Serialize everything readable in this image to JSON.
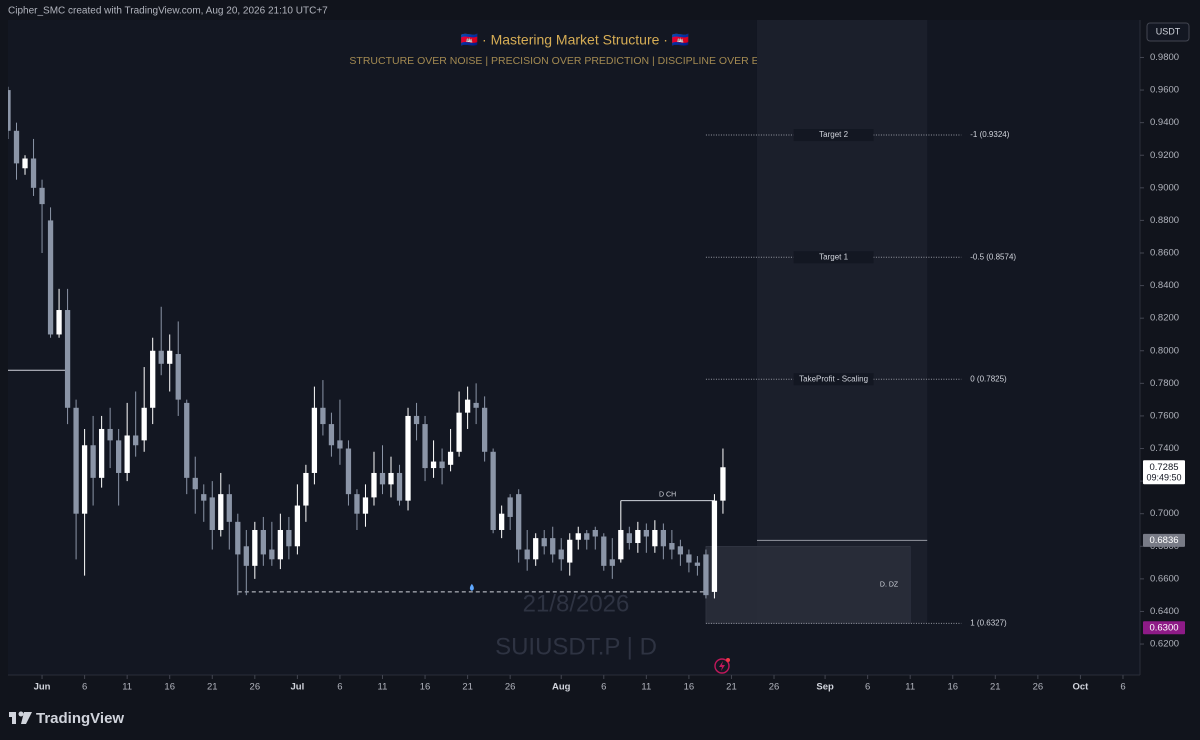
{
  "chart_data": {
    "type": "candlestick",
    "credit": "Cipher_SMC created with TradingView.com, Aug 20, 2026 21:10 UTC+7",
    "title": "🇰🇭 · Mastering Market Structure · 🇰🇭",
    "subtitle": "STRUCTURE OVER NOISE  |  PRECISION OVER PREDICTION  |  DISCIPLINE OVER EMOTION",
    "watermark_date": "21/8/2026",
    "symbol": "SUIUSDT.P | D",
    "currency": "USDT",
    "brand": "TradingView",
    "up_color": "#ffffff",
    "down_color": "#8b95a7",
    "x": [
      "2026-05-28",
      "2026-05-29",
      "2026-05-30",
      "2026-05-31",
      "2026-06-01",
      "2026-06-02",
      "2026-06-03",
      "2026-06-04",
      "2026-06-05",
      "2026-06-06",
      "2026-06-07",
      "2026-06-08",
      "2026-06-09",
      "2026-06-10",
      "2026-06-11",
      "2026-06-12",
      "2026-06-13",
      "2026-06-14",
      "2026-06-15",
      "2026-06-16",
      "2026-06-17",
      "2026-06-18",
      "2026-06-19",
      "2026-06-20",
      "2026-06-21",
      "2026-06-22",
      "2026-06-23",
      "2026-06-24",
      "2026-06-25",
      "2026-06-26",
      "2026-06-27",
      "2026-06-28",
      "2026-06-29",
      "2026-06-30",
      "2026-07-01",
      "2026-07-02",
      "2026-07-03",
      "2026-07-04",
      "2026-07-05",
      "2026-07-06",
      "2026-07-07",
      "2026-07-08",
      "2026-07-09",
      "2026-07-10",
      "2026-07-11",
      "2026-07-12",
      "2026-07-13",
      "2026-07-14",
      "2026-07-15",
      "2026-07-16",
      "2026-07-17",
      "2026-07-18",
      "2026-07-19",
      "2026-07-20",
      "2026-07-21",
      "2026-07-22",
      "2026-07-23",
      "2026-07-24",
      "2026-07-25",
      "2026-07-26",
      "2026-07-27",
      "2026-07-28",
      "2026-07-29",
      "2026-07-30",
      "2026-07-31",
      "2026-08-01",
      "2026-08-02",
      "2026-08-03",
      "2026-08-04",
      "2026-08-05",
      "2026-08-06",
      "2026-08-07",
      "2026-08-08",
      "2026-08-09",
      "2026-08-10",
      "2026-08-11",
      "2026-08-12",
      "2026-08-13",
      "2026-08-14",
      "2026-08-15",
      "2026-08-16",
      "2026-08-17",
      "2026-08-18",
      "2026-08-19",
      "2026-08-20"
    ],
    "open": [
      0.96,
      0.935,
      0.912,
      0.918,
      0.9,
      0.88,
      0.81,
      0.825,
      0.765,
      0.7,
      0.742,
      0.722,
      0.752,
      0.745,
      0.725,
      0.748,
      0.745,
      0.765,
      0.8,
      0.792,
      0.798,
      0.768,
      0.722,
      0.712,
      0.71,
      0.69,
      0.712,
      0.695,
      0.68,
      0.668,
      0.69,
      0.678,
      0.672,
      0.69,
      0.68,
      0.705,
      0.725,
      0.765,
      0.755,
      0.745,
      0.74,
      0.712,
      0.7,
      0.71,
      0.725,
      0.718,
      0.725,
      0.708,
      0.76,
      0.755,
      0.728,
      0.732,
      0.73,
      0.738,
      0.762,
      0.768,
      0.765,
      0.738,
      0.69,
      0.71,
      0.712,
      0.678,
      0.672,
      0.685,
      0.685,
      0.678,
      0.67,
      0.684,
      0.688,
      0.69,
      0.686,
      0.672,
      0.672,
      0.688,
      0.682,
      0.69,
      0.68,
      0.69,
      0.682,
      0.68,
      0.675,
      0.67,
      0.675,
      0.652,
      0.708
    ],
    "high": [
      0.962,
      0.94,
      0.92,
      0.93,
      0.905,
      0.888,
      0.838,
      0.838,
      0.77,
      0.752,
      0.76,
      0.76,
      0.765,
      0.752,
      0.768,
      0.775,
      0.79,
      0.808,
      0.827,
      0.81,
      0.818,
      0.77,
      0.735,
      0.718,
      0.72,
      0.725,
      0.718,
      0.7,
      0.69,
      0.695,
      0.698,
      0.695,
      0.7,
      0.698,
      0.718,
      0.73,
      0.778,
      0.782,
      0.762,
      0.77,
      0.745,
      0.715,
      0.718,
      0.738,
      0.742,
      0.735,
      0.73,
      0.765,
      0.768,
      0.76,
      0.745,
      0.74,
      0.752,
      0.775,
      0.778,
      0.78,
      0.772,
      0.74,
      0.705,
      0.712,
      0.715,
      0.69,
      0.688,
      0.69,
      0.692,
      0.685,
      0.688,
      0.692,
      0.69,
      0.692,
      0.688,
      0.685,
      0.708,
      0.692,
      0.695,
      0.694,
      0.696,
      0.694,
      0.69,
      0.684,
      0.678,
      0.674,
      0.678,
      0.712,
      0.74
    ],
    "low": [
      0.93,
      0.905,
      0.908,
      0.895,
      0.86,
      0.808,
      0.808,
      0.755,
      0.672,
      0.662,
      0.705,
      0.716,
      0.728,
      0.705,
      0.72,
      0.735,
      0.738,
      0.755,
      0.785,
      0.775,
      0.76,
      0.712,
      0.7,
      0.695,
      0.678,
      0.686,
      0.678,
      0.65,
      0.65,
      0.66,
      0.668,
      0.668,
      0.666,
      0.672,
      0.675,
      0.695,
      0.718,
      0.748,
      0.735,
      0.73,
      0.705,
      0.69,
      0.692,
      0.705,
      0.712,
      0.71,
      0.705,
      0.702,
      0.745,
      0.72,
      0.722,
      0.718,
      0.726,
      0.735,
      0.752,
      0.755,
      0.732,
      0.688,
      0.685,
      0.69,
      0.67,
      0.665,
      0.668,
      0.675,
      0.67,
      0.665,
      0.662,
      0.678,
      0.678,
      0.678,
      0.665,
      0.66,
      0.67,
      0.678,
      0.676,
      0.676,
      0.676,
      0.672,
      0.672,
      0.668,
      0.664,
      0.662,
      0.648,
      0.648,
      0.7
    ],
    "close": [
      0.935,
      0.915,
      0.918,
      0.9,
      0.89,
      0.81,
      0.825,
      0.765,
      0.7,
      0.742,
      0.722,
      0.752,
      0.745,
      0.725,
      0.748,
      0.742,
      0.765,
      0.8,
      0.792,
      0.8,
      0.77,
      0.722,
      0.715,
      0.708,
      0.69,
      0.712,
      0.695,
      0.675,
      0.668,
      0.69,
      0.675,
      0.672,
      0.69,
      0.68,
      0.705,
      0.725,
      0.765,
      0.755,
      0.742,
      0.74,
      0.712,
      0.7,
      0.71,
      0.725,
      0.718,
      0.725,
      0.708,
      0.76,
      0.755,
      0.728,
      0.732,
      0.728,
      0.738,
      0.762,
      0.77,
      0.765,
      0.738,
      0.69,
      0.7,
      0.698,
      0.678,
      0.672,
      0.685,
      0.68,
      0.675,
      0.672,
      0.684,
      0.688,
      0.684,
      0.686,
      0.668,
      0.668,
      0.69,
      0.682,
      0.69,
      0.686,
      0.69,
      0.68,
      0.678,
      0.675,
      0.67,
      0.668,
      0.65,
      0.708,
      0.7285
    ],
    "xlim": [
      "2026-05-28",
      "2026-10-08"
    ],
    "xticks": [
      {
        "value": "2026-06-01",
        "label": "Jun"
      },
      {
        "value": "2026-06-06",
        "label": "6"
      },
      {
        "value": "2026-06-11",
        "label": "11"
      },
      {
        "value": "2026-06-16",
        "label": "16"
      },
      {
        "value": "2026-06-21",
        "label": "21"
      },
      {
        "value": "2026-06-26",
        "label": "26"
      },
      {
        "value": "2026-07-01",
        "label": "Jul"
      },
      {
        "value": "2026-07-06",
        "label": "6"
      },
      {
        "value": "2026-07-11",
        "label": "11"
      },
      {
        "value": "2026-07-16",
        "label": "16"
      },
      {
        "value": "2026-07-21",
        "label": "21"
      },
      {
        "value": "2026-07-26",
        "label": "26"
      },
      {
        "value": "2026-08-01",
        "label": "Aug"
      },
      {
        "value": "2026-08-06",
        "label": "6"
      },
      {
        "value": "2026-08-11",
        "label": "11"
      },
      {
        "value": "2026-08-16",
        "label": "16"
      },
      {
        "value": "2026-08-21",
        "label": "21"
      },
      {
        "value": "2026-08-26",
        "label": "26"
      },
      {
        "value": "2026-09-01",
        "label": "Sep"
      },
      {
        "value": "2026-09-06",
        "label": "6"
      },
      {
        "value": "2026-09-11",
        "label": "11"
      },
      {
        "value": "2026-09-16",
        "label": "16"
      },
      {
        "value": "2026-09-21",
        "label": "21"
      },
      {
        "value": "2026-09-26",
        "label": "26"
      },
      {
        "value": "2026-10-01",
        "label": "Oct"
      },
      {
        "value": "2026-10-06",
        "label": "6"
      }
    ],
    "ylim": [
      0.601,
      1.003
    ],
    "yticks": [
      {
        "value": 0.98,
        "label": "0.9800"
      },
      {
        "value": 0.96,
        "label": "0.9600"
      },
      {
        "value": 0.94,
        "label": "0.9400"
      },
      {
        "value": 0.92,
        "label": "0.9200"
      },
      {
        "value": 0.9,
        "label": "0.9000"
      },
      {
        "value": 0.88,
        "label": "0.8800"
      },
      {
        "value": 0.86,
        "label": "0.8600"
      },
      {
        "value": 0.84,
        "label": "0.8400"
      },
      {
        "value": 0.82,
        "label": "0.8200"
      },
      {
        "value": 0.8,
        "label": "0.8000"
      },
      {
        "value": 0.78,
        "label": "0.7800"
      },
      {
        "value": 0.76,
        "label": "0.7600"
      },
      {
        "value": 0.74,
        "label": "0.7400"
      },
      {
        "value": 0.72,
        "label": "0.7200"
      },
      {
        "value": 0.7,
        "label": "0.7000"
      },
      {
        "value": 0.68,
        "label": "0.6800"
      },
      {
        "value": 0.66,
        "label": "0.6600"
      },
      {
        "value": 0.64,
        "label": "0.6400"
      },
      {
        "value": 0.62,
        "label": "0.6200"
      }
    ],
    "levels": [
      {
        "label": "Target 2",
        "ratio_label": "-1 (0.9324)",
        "value": 0.9324
      },
      {
        "label": "Target 1",
        "ratio_label": "-0.5 (0.8574)",
        "value": 0.8574
      },
      {
        "label": "TakeProfit  - Scaling",
        "ratio_label": "0 (0.7825)",
        "value": 0.7825
      },
      {
        "ratio_label": "1 (0.6327)",
        "value": 0.6327
      }
    ],
    "prior_level": 0.788,
    "sweep_level": 0.652,
    "choch": {
      "label": "D CH",
      "value": 0.708
    },
    "zone": {
      "label": "D. DZ",
      "high": 0.68,
      "low": 0.6327
    },
    "zone_line": 0.6836,
    "price_tags": [
      {
        "value": 0.7285,
        "label": "0.7285",
        "countdown": "09:49:50",
        "color": "#ffffff",
        "text_color": "#131722"
      },
      {
        "value": 0.6836,
        "label": "0.6836",
        "color": "#787b86",
        "text_color": "#ffffff"
      },
      {
        "value": 0.63,
        "label": "0.6300",
        "color": "#8e1b87",
        "text_color": "#ffffff"
      }
    ]
  }
}
